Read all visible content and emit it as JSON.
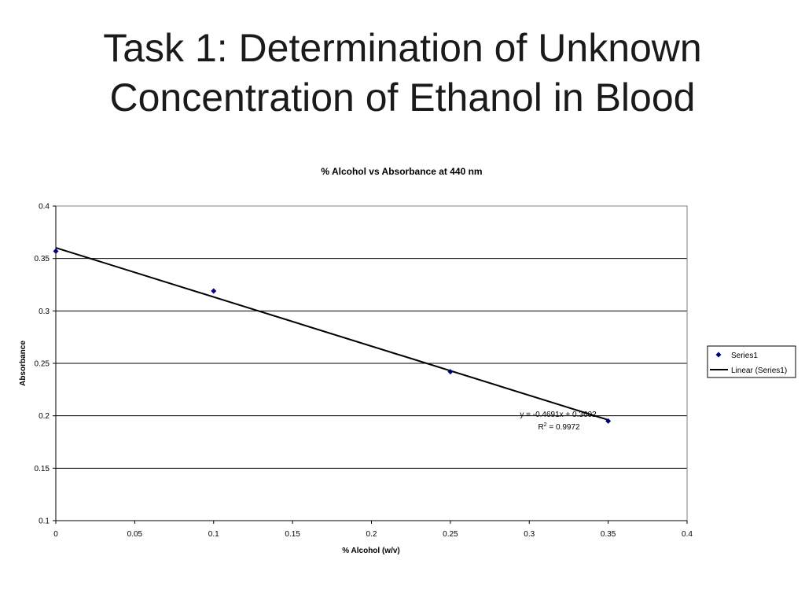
{
  "slide": {
    "title_line1": "Task 1:  Determination of Unknown",
    "title_line2": "Concentration of Ethanol in Blood"
  },
  "chart_data": {
    "type": "scatter",
    "title": "% Alcohol vs Absorbance at 440 nm",
    "xlabel": "% Alcohol (w/v)",
    "ylabel": "Absorbance",
    "xlim": [
      0,
      0.4
    ],
    "ylim": [
      0.1,
      0.4
    ],
    "x_ticks": [
      "0",
      "0.05",
      "0.1",
      "0.15",
      "0.2",
      "0.25",
      "0.3",
      "0.35",
      "0.4"
    ],
    "y_ticks": [
      "0.1",
      "0.15",
      "0.2",
      "0.25",
      "0.3",
      "0.35",
      "0.4"
    ],
    "grid": "horizontal",
    "legend_position": "right",
    "series": [
      {
        "name": "Series1",
        "x": [
          0,
          0.1,
          0.25,
          0.35
        ],
        "y": [
          0.357,
          0.319,
          0.242,
          0.195
        ],
        "color": "#00007f",
        "marker": "diamond"
      }
    ],
    "trendline": {
      "name": "Linear (Series1)",
      "slope": -0.4691,
      "intercept": 0.3602,
      "x_range": [
        0,
        0.35
      ],
      "color": "#000000",
      "equation_label": "y = -0.4691x + 0.3602",
      "r2_label_prefix": "R",
      "r2_label_sup": "2",
      "r2_label_value": " = 0.9972"
    }
  }
}
